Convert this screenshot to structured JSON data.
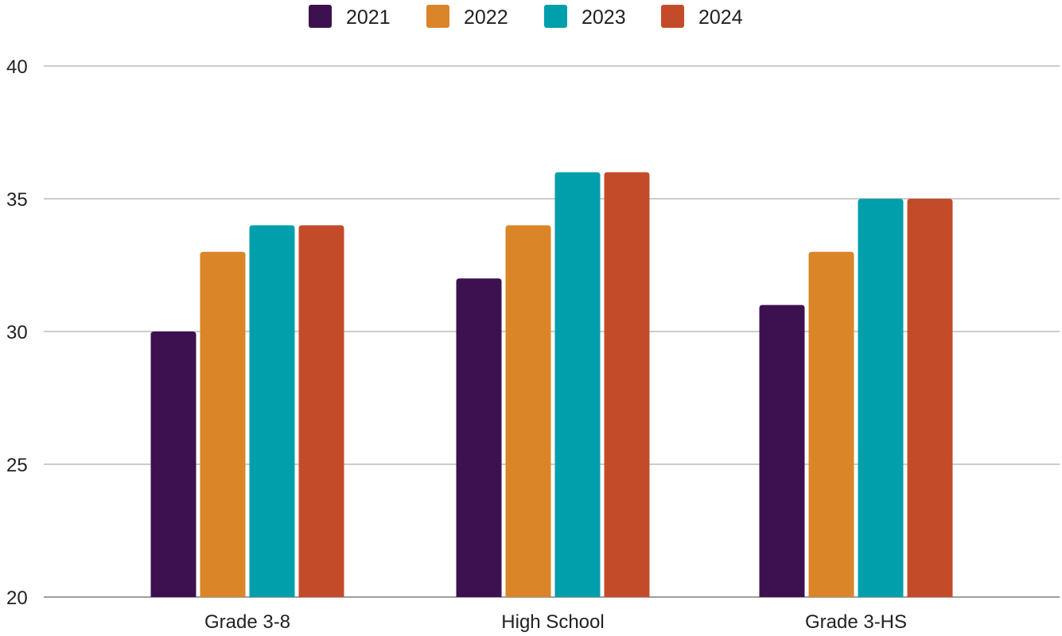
{
  "chart_data": {
    "type": "bar",
    "title": "",
    "xlabel": "",
    "ylabel": "",
    "categories": [
      "Grade 3-8",
      "High School",
      "Grade 3-HS"
    ],
    "series": [
      {
        "name": "2021",
        "color": "#3d1150",
        "values": [
          30,
          32,
          31
        ]
      },
      {
        "name": "2022",
        "color": "#da8527",
        "values": [
          33,
          34,
          33
        ]
      },
      {
        "name": "2023",
        "color": "#019fab",
        "values": [
          34,
          36,
          35
        ]
      },
      {
        "name": "2024",
        "color": "#c44b29",
        "values": [
          34,
          36,
          35
        ]
      }
    ],
    "ylim": [
      20,
      40
    ],
    "yticks": [
      20,
      25,
      30,
      35,
      40
    ],
    "grid": true,
    "legend_position": "top-center"
  }
}
